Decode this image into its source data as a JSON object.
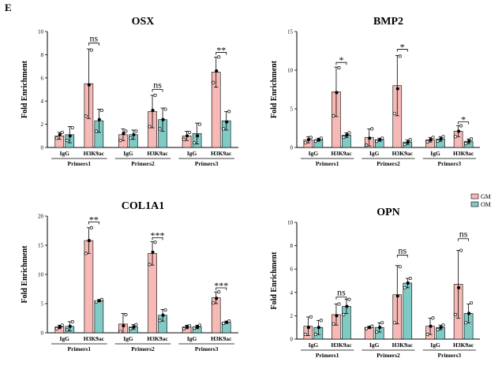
{
  "panel_label": "E",
  "colors": {
    "GM": "#f7b9b5",
    "OM": "#7fcac5",
    "bar_stroke": "#000000"
  },
  "legend": {
    "placement": "right-middle",
    "entries": [
      "GM",
      "OM"
    ]
  },
  "chart_data": [
    {
      "type": "bar",
      "title": "OSX",
      "ylabel": "Fold Enrichment",
      "ylim": [
        0,
        10
      ],
      "yticks": [
        0,
        2,
        4,
        6,
        8,
        10
      ],
      "groups": [
        "Primers1",
        "Primers2",
        "Primers3"
      ],
      "categories": [
        "IgG",
        "H3K9ac"
      ],
      "series": [
        {
          "name": "GM",
          "values": [
            [
              1.0,
              5.5
            ],
            [
              1.1,
              3.1
            ],
            [
              1.0,
              6.5
            ]
          ],
          "errors": [
            [
              0.3,
              3.0
            ],
            [
              0.5,
              1.4
            ],
            [
              0.4,
              1.3
            ]
          ],
          "points": [
            [
              [
                0.8,
                1.1,
                1.3
              ],
              [
                2.7,
                5.4,
                8.4
              ]
            ],
            [
              [
                0.6,
                1.2,
                1.4
              ],
              [
                1.8,
                3.2,
                4.5
              ]
            ],
            [
              [
                0.7,
                1.0,
                1.3
              ],
              [
                5.6,
                6.6,
                7.8
              ]
            ]
          ]
        },
        {
          "name": "OM",
          "values": [
            [
              1.1,
              2.3
            ],
            [
              1.1,
              2.4
            ],
            [
              1.2,
              2.3
            ]
          ],
          "errors": [
            [
              0.7,
              1.0
            ],
            [
              0.4,
              1.0
            ],
            [
              0.9,
              0.8
            ]
          ],
          "points": [
            [
              [
                0.6,
                1.0,
                1.7
              ],
              [
                1.4,
                2.4,
                3.2
              ]
            ],
            [
              [
                0.8,
                1.1,
                1.4
              ],
              [
                1.6,
                2.4,
                3.3
              ]
            ],
            [
              [
                0.4,
                1.0,
                2.0
              ],
              [
                1.6,
                2.2,
                3.1
              ]
            ]
          ]
        }
      ],
      "significance": [
        {
          "group": "Primers1",
          "label": "ns",
          "y": 9.0
        },
        {
          "group": "Primers2",
          "label": "ns",
          "y": 5.0
        },
        {
          "group": "Primers3",
          "label": "**",
          "y": 8.2
        }
      ]
    },
    {
      "type": "bar",
      "title": "BMP2",
      "ylabel": "Fold Enrichment",
      "ylim": [
        0,
        15
      ],
      "yticks": [
        0,
        5,
        10,
        15
      ],
      "groups": [
        "Primers1",
        "Primers2",
        "Primers3"
      ],
      "categories": [
        "IgG",
        "H3K9ac"
      ],
      "series": [
        {
          "name": "GM",
          "values": [
            [
              1.0,
              7.2
            ],
            [
              1.3,
              8.0
            ],
            [
              1.0,
              2.1
            ]
          ],
          "errors": [
            [
              0.4,
              3.2
            ],
            [
              1.1,
              3.9
            ],
            [
              0.3,
              0.7
            ]
          ],
          "points": [
            [
              [
                0.6,
                1.0,
                1.3
              ],
              [
                4.1,
                7.1,
                10.3
              ]
            ],
            [
              [
                0.3,
                1.2,
                2.4
              ],
              [
                4.4,
                7.6,
                11.8
              ]
            ],
            [
              [
                0.7,
                1.0,
                1.3
              ],
              [
                1.4,
                2.1,
                2.8
              ]
            ]
          ]
        },
        {
          "name": "OM",
          "values": [
            [
              1.0,
              1.6
            ],
            [
              1.0,
              0.7
            ],
            [
              1.1,
              0.8
            ]
          ],
          "errors": [
            [
              0.2,
              0.3
            ],
            [
              0.2,
              0.3
            ],
            [
              0.3,
              0.3
            ]
          ],
          "points": [
            [
              [
                0.8,
                1.0,
                1.2
              ],
              [
                1.3,
                1.6,
                1.9
              ]
            ],
            [
              [
                0.8,
                1.0,
                1.2
              ],
              [
                0.4,
                0.7,
                1.0
              ]
            ],
            [
              [
                0.8,
                1.1,
                1.4
              ],
              [
                0.5,
                0.8,
                1.1
              ]
            ]
          ]
        }
      ],
      "significance": [
        {
          "group": "Primers1",
          "label": "*",
          "y": 11.0
        },
        {
          "group": "Primers2",
          "label": "*",
          "y": 12.7
        },
        {
          "group": "Primers3",
          "label": "*",
          "y": 3.3
        }
      ]
    },
    {
      "type": "bar",
      "title": "COL1A1",
      "ylabel": "Fold Enrichment",
      "ylim": [
        0,
        20
      ],
      "yticks": [
        0,
        5,
        10,
        15,
        20
      ],
      "groups": [
        "Primers1",
        "Primers2",
        "Primers3"
      ],
      "categories": [
        "IgG",
        "H3K9ac"
      ],
      "series": [
        {
          "name": "GM",
          "values": [
            [
              1.0,
              15.8
            ],
            [
              1.5,
              13.6
            ],
            [
              1.0,
              6.0
            ]
          ],
          "errors": [
            [
              0.3,
              2.2
            ],
            [
              1.8,
              2.0
            ],
            [
              0.3,
              1.0
            ]
          ],
          "points": [
            [
              [
                0.7,
                1.0,
                1.3
              ],
              [
                13.6,
                15.8,
                18.0
              ]
            ],
            [
              [
                0.2,
                1.2,
                3.1
              ],
              [
                11.7,
                13.8,
                15.5
              ]
            ],
            [
              [
                0.7,
                1.0,
                1.2
              ],
              [
                5.1,
                5.9,
                7.0
              ]
            ]
          ]
        },
        {
          "name": "OM",
          "values": [
            [
              1.1,
              5.5
            ],
            [
              1.0,
              3.0
            ],
            [
              1.0,
              1.8
            ]
          ],
          "errors": [
            [
              0.8,
              0.2
            ],
            [
              0.4,
              1.0
            ],
            [
              0.3,
              0.2
            ]
          ],
          "points": [
            [
              [
                0.5,
                1.1,
                1.9
              ],
              [
                5.3,
                5.5,
                5.7
              ]
            ],
            [
              [
                0.7,
                1.0,
                1.4
              ],
              [
                2.1,
                3.0,
                3.9
              ]
            ],
            [
              [
                0.8,
                1.0,
                1.3
              ],
              [
                1.6,
                1.8,
                2.0
              ]
            ]
          ]
        }
      ],
      "significance": [
        {
          "group": "Primers1",
          "label": "**",
          "y": 19.0
        },
        {
          "group": "Primers2",
          "label": "***",
          "y": 16.3
        },
        {
          "group": "Primers3",
          "label": "***",
          "y": 7.7
        }
      ]
    },
    {
      "type": "bar",
      "title": "OPN",
      "ylabel": "Fold Enrichment",
      "ylim": [
        0,
        10
      ],
      "yticks": [
        0,
        2,
        4,
        6,
        8,
        10
      ],
      "groups": [
        "Primers1",
        "Primers2",
        "Primers3"
      ],
      "categories": [
        "IgG",
        "H3K9ac"
      ],
      "series": [
        {
          "name": "GM",
          "values": [
            [
              1.1,
              2.1
            ],
            [
              1.0,
              3.8
            ],
            [
              1.1,
              4.7
            ]
          ],
          "errors": [
            [
              0.8,
              0.9
            ],
            [
              0.1,
              2.5
            ],
            [
              0.7,
              2.9
            ]
          ],
          "points": [
            [
              [
                0.4,
                1.0,
                1.9
              ],
              [
                1.3,
                2.0,
                3.0
              ]
            ],
            [
              [
                0.9,
                1.0,
                1.1
              ],
              [
                1.4,
                3.7,
                6.2
              ]
            ],
            [
              [
                0.4,
                1.1,
                1.8
              ],
              [
                2.1,
                4.4,
                7.6
              ]
            ]
          ]
        },
        {
          "name": "OM",
          "values": [
            [
              1.0,
              2.8
            ],
            [
              1.0,
              4.8
            ],
            [
              1.0,
              2.2
            ]
          ],
          "errors": [
            [
              0.6,
              0.6
            ],
            [
              0.4,
              0.4
            ],
            [
              0.2,
              0.8
            ]
          ],
          "points": [
            [
              [
                0.4,
                1.0,
                1.6
              ],
              [
                2.1,
                2.8,
                3.4
              ]
            ],
            [
              [
                0.6,
                1.0,
                1.4
              ],
              [
                4.4,
                4.8,
                5.2
              ]
            ],
            [
              [
                0.8,
                1.0,
                1.2
              ],
              [
                1.4,
                2.2,
                3.1
              ]
            ]
          ]
        }
      ],
      "significance": [
        {
          "group": "Primers1",
          "label": "ns",
          "y": 3.6
        },
        {
          "group": "Primers2",
          "label": "ns",
          "y": 7.2
        },
        {
          "group": "Primers3",
          "label": "ns",
          "y": 8.6
        }
      ]
    }
  ]
}
